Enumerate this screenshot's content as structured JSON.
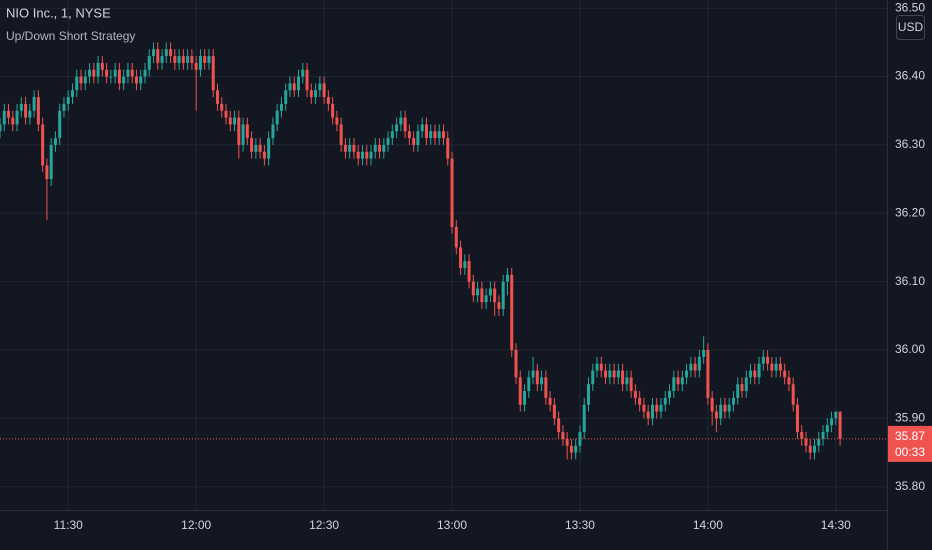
{
  "chart_data": {
    "type": "candlestick",
    "title": "NIO Inc., 1, NYSE",
    "subtitle": "Up/Down Short Strategy",
    "currency": "USD",
    "up_color": "#26a69a",
    "down_color": "#ef5350",
    "last_price": 35.87,
    "countdown": "00:33",
    "grid": true,
    "xlim": [
      "11:14",
      "14:42"
    ],
    "xticks": [
      "11:30",
      "12:00",
      "12:30",
      "13:00",
      "13:30",
      "14:00",
      "14:30"
    ],
    "ylim": [
      35.766,
      36.512
    ],
    "yticks": [
      {
        "value": 35.8,
        "label": "35.80"
      },
      {
        "value": 35.9,
        "label": "35.90"
      },
      {
        "value": 36.0,
        "label": "36.00"
      },
      {
        "value": 36.1,
        "label": "36.10"
      },
      {
        "value": 36.2,
        "label": "36.20"
      },
      {
        "value": 36.3,
        "label": "36.30"
      },
      {
        "value": 36.4,
        "label": "36.40"
      },
      {
        "value": 36.5,
        "label": "36.50"
      }
    ],
    "x": [
      "11:14",
      "11:15",
      "11:16",
      "11:17",
      "11:18",
      "11:19",
      "11:20",
      "11:21",
      "11:22",
      "11:23",
      "11:24",
      "11:25",
      "11:26",
      "11:27",
      "11:28",
      "11:29",
      "11:30",
      "11:31",
      "11:32",
      "11:33",
      "11:34",
      "11:35",
      "11:36",
      "11:37",
      "11:38",
      "11:39",
      "11:40",
      "11:41",
      "11:42",
      "11:43",
      "11:44",
      "11:45",
      "11:46",
      "11:47",
      "11:48",
      "11:49",
      "11:50",
      "11:51",
      "11:52",
      "11:53",
      "11:54",
      "11:55",
      "11:56",
      "11:57",
      "11:58",
      "11:59",
      "12:00",
      "12:01",
      "12:02",
      "12:03",
      "12:04",
      "12:05",
      "12:06",
      "12:07",
      "12:08",
      "12:09",
      "12:10",
      "12:11",
      "12:12",
      "12:13",
      "12:14",
      "12:15",
      "12:16",
      "12:17",
      "12:18",
      "12:19",
      "12:20",
      "12:21",
      "12:22",
      "12:23",
      "12:24",
      "12:25",
      "12:26",
      "12:27",
      "12:28",
      "12:29",
      "12:30",
      "12:31",
      "12:32",
      "12:33",
      "12:34",
      "12:35",
      "12:36",
      "12:37",
      "12:38",
      "12:39",
      "12:40",
      "12:41",
      "12:42",
      "12:43",
      "12:44",
      "12:45",
      "12:46",
      "12:47",
      "12:48",
      "12:49",
      "12:50",
      "12:51",
      "12:52",
      "12:53",
      "12:54",
      "12:55",
      "12:56",
      "12:57",
      "12:58",
      "12:59",
      "13:00",
      "13:01",
      "13:02",
      "13:03",
      "13:04",
      "13:05",
      "13:06",
      "13:07",
      "13:08",
      "13:09",
      "13:10",
      "13:11",
      "13:12",
      "13:13",
      "13:14",
      "13:15",
      "13:16",
      "13:17",
      "13:18",
      "13:19",
      "13:20",
      "13:21",
      "13:22",
      "13:23",
      "13:24",
      "13:25",
      "13:26",
      "13:27",
      "13:28",
      "13:29",
      "13:30",
      "13:31",
      "13:32",
      "13:33",
      "13:34",
      "13:35",
      "13:36",
      "13:37",
      "13:38",
      "13:39",
      "13:40",
      "13:41",
      "13:42",
      "13:43",
      "13:44",
      "13:45",
      "13:46",
      "13:47",
      "13:48",
      "13:49",
      "13:50",
      "13:51",
      "13:52",
      "13:53",
      "13:54",
      "13:55",
      "13:56",
      "13:57",
      "13:58",
      "13:59",
      "14:00",
      "14:01",
      "14:02",
      "14:03",
      "14:04",
      "14:05",
      "14:06",
      "14:07",
      "14:08",
      "14:09",
      "14:10",
      "14:11",
      "14:12",
      "14:13",
      "14:14",
      "14:15",
      "14:16",
      "14:17",
      "14:18",
      "14:19",
      "14:20",
      "14:21",
      "14:22",
      "14:23",
      "14:24",
      "14:25",
      "14:26",
      "14:27",
      "14:28",
      "14:29",
      "14:30",
      "14:31"
    ],
    "ohlc": [
      [
        36.32,
        36.34,
        36.31,
        36.33
      ],
      [
        36.33,
        36.36,
        36.32,
        36.35
      ],
      [
        36.35,
        36.36,
        36.33,
        36.34
      ],
      [
        36.34,
        36.35,
        36.32,
        36.33
      ],
      [
        36.33,
        36.36,
        36.32,
        36.35
      ],
      [
        36.35,
        36.37,
        36.34,
        36.36
      ],
      [
        36.36,
        36.37,
        36.33,
        36.34
      ],
      [
        36.34,
        36.36,
        36.33,
        36.35
      ],
      [
        36.35,
        36.38,
        36.34,
        36.37
      ],
      [
        36.37,
        36.38,
        36.32,
        36.33
      ],
      [
        36.33,
        36.34,
        36.26,
        36.27
      ],
      [
        36.27,
        36.28,
        36.19,
        36.25
      ],
      [
        36.25,
        36.31,
        36.24,
        36.3
      ],
      [
        36.3,
        36.32,
        36.29,
        36.31
      ],
      [
        36.31,
        36.36,
        36.3,
        36.35
      ],
      [
        36.35,
        36.37,
        36.34,
        36.36
      ],
      [
        36.36,
        36.38,
        36.35,
        36.37
      ],
      [
        36.37,
        36.39,
        36.36,
        36.38
      ],
      [
        36.38,
        36.41,
        36.37,
        36.4
      ],
      [
        36.4,
        36.41,
        36.38,
        36.39
      ],
      [
        36.39,
        36.41,
        36.38,
        36.4
      ],
      [
        36.4,
        36.42,
        36.39,
        36.41
      ],
      [
        36.41,
        36.42,
        36.39,
        36.4
      ],
      [
        36.4,
        36.43,
        36.39,
        36.42
      ],
      [
        36.42,
        36.43,
        36.4,
        36.41
      ],
      [
        36.41,
        36.42,
        36.39,
        36.4
      ],
      [
        36.4,
        36.41,
        36.39,
        36.4
      ],
      [
        36.4,
        36.42,
        36.39,
        36.41
      ],
      [
        36.41,
        36.42,
        36.38,
        36.39
      ],
      [
        36.39,
        36.41,
        36.38,
        36.4
      ],
      [
        36.4,
        36.42,
        36.39,
        36.41
      ],
      [
        36.41,
        36.42,
        36.39,
        36.4
      ],
      [
        36.4,
        36.41,
        36.38,
        36.39
      ],
      [
        36.39,
        36.41,
        36.38,
        36.4
      ],
      [
        36.4,
        36.42,
        36.39,
        36.41
      ],
      [
        36.41,
        36.44,
        36.4,
        36.43
      ],
      [
        36.43,
        36.45,
        36.42,
        36.44
      ],
      [
        36.44,
        36.45,
        36.41,
        36.42
      ],
      [
        36.42,
        36.44,
        36.41,
        36.43
      ],
      [
        36.43,
        36.45,
        36.42,
        36.44
      ],
      [
        36.44,
        36.45,
        36.42,
        36.43
      ],
      [
        36.43,
        36.44,
        36.41,
        36.42
      ],
      [
        36.42,
        36.44,
        36.41,
        36.43
      ],
      [
        36.43,
        36.44,
        36.41,
        36.42
      ],
      [
        36.42,
        36.44,
        36.41,
        36.43
      ],
      [
        36.43,
        36.44,
        36.41,
        36.42
      ],
      [
        36.42,
        36.43,
        36.35,
        36.41
      ],
      [
        36.41,
        36.44,
        36.4,
        36.43
      ],
      [
        36.43,
        36.44,
        36.41,
        36.42
      ],
      [
        36.42,
        36.44,
        36.41,
        36.43
      ],
      [
        36.43,
        36.44,
        36.37,
        36.38
      ],
      [
        36.38,
        36.39,
        36.35,
        36.36
      ],
      [
        36.36,
        36.37,
        36.34,
        36.35
      ],
      [
        36.35,
        36.36,
        36.33,
        36.34
      ],
      [
        36.34,
        36.35,
        36.32,
        36.33
      ],
      [
        36.33,
        36.35,
        36.32,
        36.34
      ],
      [
        36.34,
        36.35,
        36.28,
        36.3
      ],
      [
        36.3,
        36.34,
        36.29,
        36.33
      ],
      [
        36.33,
        36.34,
        36.3,
        36.31
      ],
      [
        36.31,
        36.32,
        36.28,
        36.29
      ],
      [
        36.29,
        36.31,
        36.28,
        36.3
      ],
      [
        36.3,
        36.31,
        36.28,
        36.29
      ],
      [
        36.29,
        36.3,
        36.27,
        36.28
      ],
      [
        36.28,
        36.32,
        36.27,
        36.31
      ],
      [
        36.31,
        36.34,
        36.3,
        36.33
      ],
      [
        36.33,
        36.36,
        36.32,
        36.35
      ],
      [
        36.35,
        36.37,
        36.34,
        36.36
      ],
      [
        36.36,
        36.39,
        36.35,
        36.38
      ],
      [
        36.38,
        36.4,
        36.37,
        36.39
      ],
      [
        36.39,
        36.4,
        36.37,
        36.38
      ],
      [
        36.38,
        36.41,
        36.37,
        36.4
      ],
      [
        36.4,
        36.42,
        36.39,
        36.41
      ],
      [
        36.41,
        36.42,
        36.37,
        36.38
      ],
      [
        36.38,
        36.39,
        36.36,
        36.37
      ],
      [
        36.37,
        36.39,
        36.36,
        36.38
      ],
      [
        36.38,
        36.4,
        36.37,
        36.39
      ],
      [
        36.39,
        36.4,
        36.36,
        36.37
      ],
      [
        36.37,
        36.38,
        36.35,
        36.36
      ],
      [
        36.36,
        36.37,
        36.33,
        36.34
      ],
      [
        36.34,
        36.35,
        36.32,
        36.33
      ],
      [
        36.33,
        36.34,
        36.29,
        36.3
      ],
      [
        36.3,
        36.31,
        36.28,
        36.29
      ],
      [
        36.29,
        36.31,
        36.28,
        36.3
      ],
      [
        36.3,
        36.31,
        36.28,
        36.29
      ],
      [
        36.29,
        36.3,
        36.27,
        36.28
      ],
      [
        36.28,
        36.3,
        36.27,
        36.29
      ],
      [
        36.29,
        36.3,
        36.27,
        36.28
      ],
      [
        36.28,
        36.3,
        36.27,
        36.29
      ],
      [
        36.29,
        36.31,
        36.28,
        36.3
      ],
      [
        36.3,
        36.31,
        36.28,
        36.29
      ],
      [
        36.29,
        36.31,
        36.28,
        36.3
      ],
      [
        36.3,
        36.32,
        36.29,
        36.31
      ],
      [
        36.31,
        36.33,
        36.3,
        36.32
      ],
      [
        36.32,
        36.34,
        36.31,
        36.33
      ],
      [
        36.33,
        36.35,
        36.32,
        36.34
      ],
      [
        36.34,
        36.35,
        36.31,
        36.32
      ],
      [
        36.32,
        36.33,
        36.3,
        36.31
      ],
      [
        36.31,
        36.32,
        36.29,
        36.3
      ],
      [
        36.3,
        36.33,
        36.29,
        36.32
      ],
      [
        36.32,
        36.34,
        36.31,
        36.33
      ],
      [
        36.33,
        36.34,
        36.3,
        36.31
      ],
      [
        36.31,
        36.33,
        36.3,
        36.32
      ],
      [
        36.32,
        36.33,
        36.3,
        36.31
      ],
      [
        36.31,
        36.33,
        36.3,
        36.32
      ],
      [
        36.32,
        36.33,
        36.3,
        36.31
      ],
      [
        36.31,
        36.32,
        36.27,
        36.28
      ],
      [
        36.28,
        36.29,
        36.17,
        36.18
      ],
      [
        36.18,
        36.19,
        36.14,
        36.15
      ],
      [
        36.15,
        36.16,
        36.11,
        36.12
      ],
      [
        36.12,
        36.14,
        36.11,
        36.13
      ],
      [
        36.13,
        36.14,
        36.09,
        36.1
      ],
      [
        36.1,
        36.11,
        36.07,
        36.08
      ],
      [
        36.08,
        36.1,
        36.07,
        36.09
      ],
      [
        36.09,
        36.1,
        36.06,
        36.07
      ],
      [
        36.07,
        36.09,
        36.06,
        36.08
      ],
      [
        36.08,
        36.1,
        36.07,
        36.09
      ],
      [
        36.09,
        36.1,
        36.05,
        36.07
      ],
      [
        36.07,
        36.08,
        36.05,
        36.06
      ],
      [
        36.06,
        36.11,
        36.05,
        36.1
      ],
      [
        36.1,
        36.12,
        36.08,
        36.11
      ],
      [
        36.11,
        36.12,
        35.99,
        36.0
      ],
      [
        36.0,
        36.01,
        35.95,
        35.96
      ],
      [
        35.96,
        35.97,
        35.91,
        35.92
      ],
      [
        35.92,
        35.95,
        35.91,
        35.94
      ],
      [
        35.94,
        35.97,
        35.93,
        35.96
      ],
      [
        35.96,
        35.99,
        35.95,
        35.97
      ],
      [
        35.97,
        35.98,
        35.94,
        35.95
      ],
      [
        35.95,
        35.97,
        35.94,
        35.96
      ],
      [
        35.96,
        35.97,
        35.92,
        35.93
      ],
      [
        35.93,
        35.94,
        35.91,
        35.92
      ],
      [
        35.92,
        35.93,
        35.89,
        35.9
      ],
      [
        35.9,
        35.91,
        35.87,
        35.88
      ],
      [
        35.88,
        35.89,
        35.86,
        35.87
      ],
      [
        35.87,
        35.88,
        35.84,
        35.86
      ],
      [
        35.86,
        35.87,
        35.84,
        35.85
      ],
      [
        35.85,
        35.87,
        35.84,
        35.86
      ],
      [
        35.86,
        35.89,
        35.85,
        35.88
      ],
      [
        35.88,
        35.93,
        35.87,
        35.92
      ],
      [
        35.92,
        35.96,
        35.91,
        35.95
      ],
      [
        35.95,
        35.98,
        35.94,
        35.97
      ],
      [
        35.97,
        35.99,
        35.96,
        35.98
      ],
      [
        35.98,
        35.99,
        35.96,
        35.97
      ],
      [
        35.97,
        35.98,
        35.95,
        35.96
      ],
      [
        35.96,
        35.98,
        35.95,
        35.97
      ],
      [
        35.97,
        35.98,
        35.95,
        35.96
      ],
      [
        35.96,
        35.98,
        35.95,
        35.97
      ],
      [
        35.97,
        35.98,
        35.94,
        35.95
      ],
      [
        35.95,
        35.97,
        35.94,
        35.96
      ],
      [
        35.96,
        35.97,
        35.93,
        35.94
      ],
      [
        35.94,
        35.95,
        35.92,
        35.93
      ],
      [
        35.93,
        35.94,
        35.91,
        35.92
      ],
      [
        35.92,
        35.93,
        35.9,
        35.91
      ],
      [
        35.91,
        35.92,
        35.89,
        35.9
      ],
      [
        35.9,
        35.93,
        35.89,
        35.92
      ],
      [
        35.92,
        35.93,
        35.9,
        35.91
      ],
      [
        35.91,
        35.93,
        35.9,
        35.92
      ],
      [
        35.92,
        35.94,
        35.91,
        35.93
      ],
      [
        35.93,
        35.95,
        35.92,
        35.94
      ],
      [
        35.94,
        35.97,
        35.93,
        35.96
      ],
      [
        35.96,
        35.97,
        35.94,
        35.95
      ],
      [
        35.95,
        35.97,
        35.94,
        35.96
      ],
      [
        35.96,
        35.98,
        35.95,
        35.97
      ],
      [
        35.97,
        35.99,
        35.96,
        35.98
      ],
      [
        35.98,
        35.99,
        35.96,
        35.97
      ],
      [
        35.97,
        36.0,
        35.96,
        35.99
      ],
      [
        35.99,
        36.02,
        35.98,
        36.0
      ],
      [
        36.0,
        36.01,
        35.92,
        35.93
      ],
      [
        35.93,
        35.94,
        35.89,
        35.91
      ],
      [
        35.91,
        35.92,
        35.88,
        35.9
      ],
      [
        35.9,
        35.93,
        35.89,
        35.92
      ],
      [
        35.92,
        35.93,
        35.9,
        35.91
      ],
      [
        35.91,
        35.93,
        35.9,
        35.92
      ],
      [
        35.92,
        35.94,
        35.91,
        35.93
      ],
      [
        35.93,
        35.96,
        35.92,
        35.95
      ],
      [
        35.95,
        35.96,
        35.93,
        35.94
      ],
      [
        35.94,
        35.97,
        35.93,
        35.96
      ],
      [
        35.96,
        35.98,
        35.95,
        35.97
      ],
      [
        35.97,
        35.98,
        35.95,
        35.96
      ],
      [
        35.96,
        35.99,
        35.95,
        35.98
      ],
      [
        35.98,
        36.0,
        35.97,
        35.99
      ],
      [
        35.99,
        36.0,
        35.97,
        35.98
      ],
      [
        35.98,
        35.99,
        35.96,
        35.97
      ],
      [
        35.97,
        35.99,
        35.96,
        35.98
      ],
      [
        35.98,
        35.99,
        35.96,
        35.97
      ],
      [
        35.97,
        35.98,
        35.95,
        35.96
      ],
      [
        35.96,
        35.97,
        35.94,
        35.95
      ],
      [
        35.95,
        35.96,
        35.91,
        35.92
      ],
      [
        35.92,
        35.93,
        35.87,
        35.88
      ],
      [
        35.88,
        35.89,
        35.86,
        35.87
      ],
      [
        35.87,
        35.88,
        35.85,
        35.86
      ],
      [
        35.86,
        35.87,
        35.84,
        35.85
      ],
      [
        35.85,
        35.87,
        35.84,
        35.86
      ],
      [
        35.86,
        35.88,
        35.85,
        35.87
      ],
      [
        35.87,
        35.89,
        35.86,
        35.88
      ],
      [
        35.88,
        35.9,
        35.87,
        35.89
      ],
      [
        35.89,
        35.91,
        35.88,
        35.9
      ],
      [
        35.9,
        35.91,
        35.89,
        35.91
      ],
      [
        35.91,
        35.91,
        35.86,
        35.87
      ]
    ]
  }
}
